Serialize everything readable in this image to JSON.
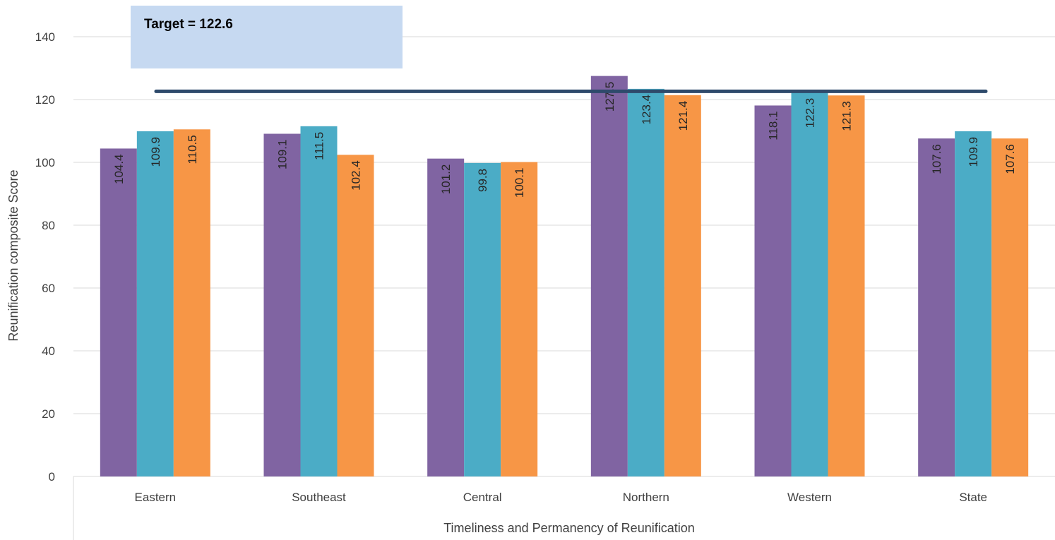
{
  "chart_data": {
    "type": "bar",
    "title": "",
    "xlabel": "Timeliness and Permanency of Reunification",
    "ylabel": "Reunification composite Score",
    "ylim": [
      0,
      140
    ],
    "yticks": [
      "0",
      "20",
      "40",
      "60",
      "80",
      "100",
      "120",
      "140"
    ],
    "categories": [
      "Eastern",
      "Southeast",
      "Central",
      "Northern",
      "Western",
      "State"
    ],
    "series": [
      {
        "values": [
          104.4,
          109.1,
          101.2,
          127.5,
          118.1,
          107.6
        ],
        "color": "#8064a2"
      },
      {
        "values": [
          109.9,
          111.5,
          99.8,
          123.4,
          122.3,
          109.9
        ],
        "color": "#4bacc6"
      },
      {
        "values": [
          110.5,
          102.4,
          100.1,
          121.4,
          121.3,
          107.6
        ],
        "color": "#f79646"
      }
    ],
    "target": {
      "value": 122.6,
      "label": "Target = 122.6",
      "line_color": "#2e4a6b",
      "box_color": "#c6d9f1"
    },
    "grid": true,
    "legend": "none"
  }
}
